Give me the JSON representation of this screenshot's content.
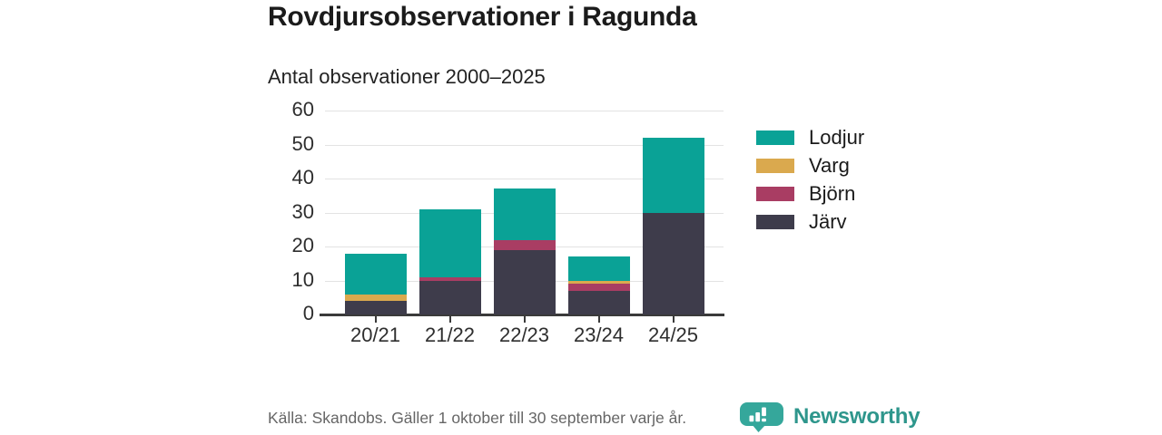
{
  "header": {
    "title": "Rovdjursobservationer i Ragunda",
    "subtitle": "Antal observationer 2000–2025"
  },
  "chart_data": {
    "type": "bar",
    "stacked": true,
    "title": "Rovdjursobservationer i Ragunda",
    "subtitle": "Antal observationer 2000–2025",
    "categories": [
      "20/21",
      "21/22",
      "22/23",
      "23/24",
      "24/25"
    ],
    "series": [
      {
        "name": "Lodjur",
        "color": "#0aa296",
        "values": [
          12,
          20,
          15,
          7,
          22
        ]
      },
      {
        "name": "Varg",
        "color": "#daa94e",
        "values": [
          2,
          0,
          0,
          1,
          0
        ]
      },
      {
        "name": "Björn",
        "color": "#a93d63",
        "values": [
          0,
          1,
          3,
          2,
          0
        ]
      },
      {
        "name": "Järv",
        "color": "#3e3c4b",
        "values": [
          4,
          10,
          19,
          7,
          30
        ]
      }
    ],
    "stack_order_bottom_to_top": [
      "Järv",
      "Björn",
      "Varg",
      "Lodjur"
    ],
    "totals": [
      18,
      31,
      37,
      17,
      52
    ],
    "xlabel": "",
    "ylabel": "",
    "ylim": [
      0,
      60
    ],
    "yticks": [
      0,
      10,
      20,
      30,
      40,
      50,
      60
    ],
    "grid": true,
    "legend_position": "right"
  },
  "legend": {
    "items": [
      {
        "label": "Lodjur",
        "color": "#0aa296"
      },
      {
        "label": "Varg",
        "color": "#daa94e"
      },
      {
        "label": "Björn",
        "color": "#a93d63"
      },
      {
        "label": "Järv",
        "color": "#3e3c4b"
      }
    ]
  },
  "footer": {
    "source": "Källa: Skandobs. Gäller 1 oktober till 30 september varje år.",
    "brand": "Newsworthy"
  },
  "colors": {
    "accent_teal": "#0aa296",
    "gold": "#daa94e",
    "maroon": "#a93d63",
    "dark_slate": "#3e3c4b",
    "gridline": "#e3e3e3",
    "axis": "#3a3a3a",
    "brand_teal": "#2e968c",
    "logo_teal": "#35a79b",
    "source_gray": "#666666"
  }
}
